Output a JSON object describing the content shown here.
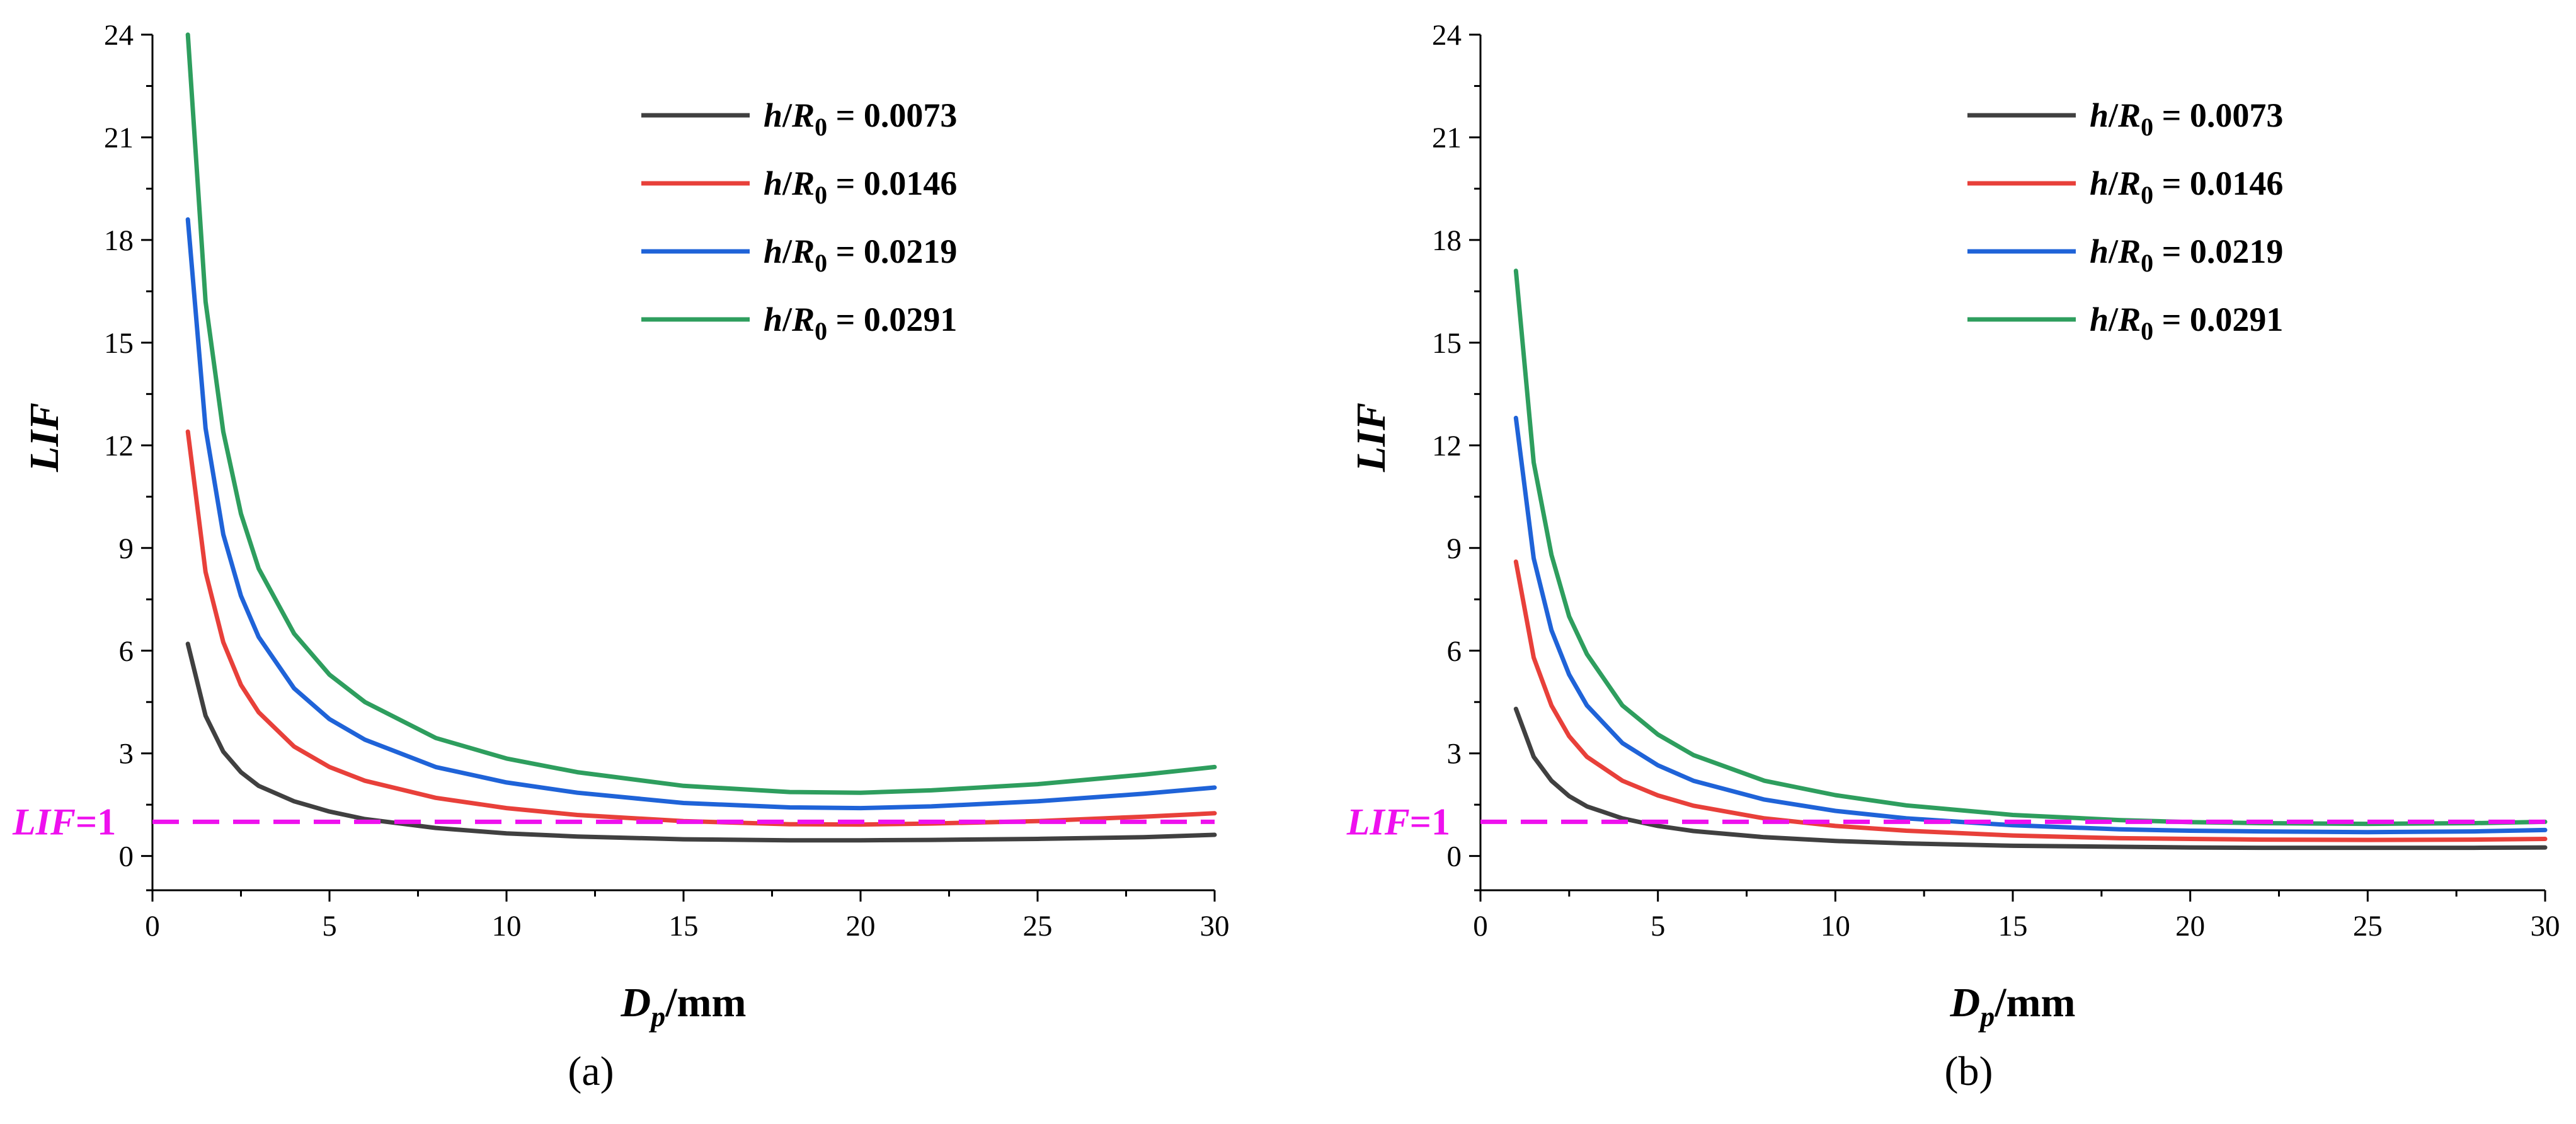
{
  "chart_data": [
    {
      "type": "line",
      "panel_label": "(a)",
      "xlabel": {
        "main": "D",
        "sub": "p",
        "suffix": "/mm"
      },
      "ylabel": "LIF",
      "xlim": [
        0,
        30
      ],
      "ylim": [
        -1,
        24
      ],
      "xticks": [
        0,
        5,
        10,
        15,
        20,
        25,
        30
      ],
      "yticks": [
        0,
        3,
        6,
        9,
        12,
        15,
        18,
        21,
        24
      ],
      "legend_position": "top-right",
      "reference_line": {
        "y": 1,
        "label_main": "LIF",
        "label_suffix": "=1",
        "color": "#ee10ee",
        "style": "dashed"
      },
      "series": [
        {
          "name": "h/R0 = 0.0073",
          "legend": {
            "h": "h",
            "slash": "/",
            "R": "R",
            "sub": "0",
            "value": " = 0.0073"
          },
          "color": "#404040",
          "x": [
            1,
            1.5,
            2,
            2.5,
            3,
            4,
            5,
            6,
            8,
            10,
            12,
            15,
            18,
            20,
            22,
            25,
            28,
            30
          ],
          "y": [
            6.2,
            4.1,
            3.05,
            2.45,
            2.05,
            1.6,
            1.3,
            1.08,
            0.82,
            0.66,
            0.57,
            0.49,
            0.46,
            0.46,
            0.47,
            0.5,
            0.55,
            0.62
          ]
        },
        {
          "name": "h/R0 = 0.0146",
          "legend": {
            "h": "h",
            "slash": "/",
            "R": "R",
            "sub": "0",
            "value": " = 0.0146"
          },
          "color": "#e8403a",
          "x": [
            1,
            1.5,
            2,
            2.5,
            3,
            4,
            5,
            6,
            8,
            10,
            12,
            15,
            18,
            20,
            22,
            25,
            28,
            30
          ],
          "y": [
            12.4,
            8.3,
            6.25,
            5.0,
            4.2,
            3.2,
            2.6,
            2.2,
            1.7,
            1.4,
            1.2,
            1.02,
            0.93,
            0.92,
            0.95,
            1.02,
            1.15,
            1.25
          ]
        },
        {
          "name": "h/R0 = 0.0219",
          "legend": {
            "h": "h",
            "slash": "/",
            "R": "R",
            "sub": "0",
            "value": " = 0.0219"
          },
          "color": "#1f63d8",
          "x": [
            1,
            1.5,
            2,
            2.5,
            3,
            4,
            5,
            6,
            8,
            10,
            12,
            15,
            18,
            20,
            22,
            25,
            28,
            30
          ],
          "y": [
            18.6,
            12.5,
            9.4,
            7.6,
            6.4,
            4.9,
            4.0,
            3.4,
            2.6,
            2.15,
            1.85,
            1.55,
            1.42,
            1.4,
            1.45,
            1.6,
            1.82,
            2.0
          ]
        },
        {
          "name": "h/R0 = 0.0291",
          "legend": {
            "h": "h",
            "slash": "/",
            "R": "R",
            "sub": "0",
            "value": " = 0.0291"
          },
          "color": "#2e9e5e",
          "x": [
            1,
            1.5,
            2,
            2.5,
            3,
            4,
            5,
            6,
            8,
            10,
            12,
            15,
            18,
            20,
            22,
            25,
            28,
            30
          ],
          "y": [
            24.0,
            16.2,
            12.4,
            10.0,
            8.4,
            6.5,
            5.3,
            4.5,
            3.45,
            2.85,
            2.45,
            2.05,
            1.87,
            1.85,
            1.92,
            2.1,
            2.38,
            2.6
          ]
        }
      ]
    },
    {
      "type": "line",
      "panel_label": "(b)",
      "xlabel": {
        "main": "D",
        "sub": "p",
        "suffix": "/mm"
      },
      "ylabel": "LIF",
      "xlim": [
        0,
        30
      ],
      "ylim": [
        -1,
        24
      ],
      "xticks": [
        0,
        5,
        10,
        15,
        20,
        25,
        30
      ],
      "yticks": [
        0,
        3,
        6,
        9,
        12,
        15,
        18,
        21,
        24
      ],
      "legend_position": "top-right",
      "reference_line": {
        "y": 1,
        "label_main": "LIF",
        "label_suffix": "=1",
        "color": "#ee10ee",
        "style": "dashed"
      },
      "series": [
        {
          "name": "h/R0 = 0.0073",
          "legend": {
            "h": "h",
            "slash": "/",
            "R": "R",
            "sub": "0",
            "value": " = 0.0073"
          },
          "color": "#404040",
          "x": [
            1,
            1.5,
            2,
            2.5,
            3,
            4,
            5,
            6,
            8,
            10,
            12,
            15,
            18,
            20,
            22,
            25,
            28,
            30
          ],
          "y": [
            4.3,
            2.9,
            2.2,
            1.75,
            1.45,
            1.1,
            0.88,
            0.73,
            0.55,
            0.44,
            0.37,
            0.3,
            0.27,
            0.25,
            0.24,
            0.24,
            0.24,
            0.25
          ]
        },
        {
          "name": "h/R0 = 0.0146",
          "legend": {
            "h": "h",
            "slash": "/",
            "R": "R",
            "sub": "0",
            "value": " = 0.0146"
          },
          "color": "#e8403a",
          "x": [
            1,
            1.5,
            2,
            2.5,
            3,
            4,
            5,
            6,
            8,
            10,
            12,
            15,
            18,
            20,
            22,
            25,
            28,
            30
          ],
          "y": [
            8.6,
            5.8,
            4.4,
            3.5,
            2.9,
            2.2,
            1.77,
            1.47,
            1.1,
            0.88,
            0.74,
            0.6,
            0.52,
            0.5,
            0.48,
            0.47,
            0.48,
            0.5
          ]
        },
        {
          "name": "h/R0 = 0.0219",
          "legend": {
            "h": "h",
            "slash": "/",
            "R": "R",
            "sub": "0",
            "value": " = 0.0219"
          },
          "color": "#1f63d8",
          "x": [
            1,
            1.5,
            2,
            2.5,
            3,
            4,
            5,
            6,
            8,
            10,
            12,
            15,
            18,
            20,
            22,
            25,
            28,
            30
          ],
          "y": [
            12.8,
            8.7,
            6.6,
            5.3,
            4.4,
            3.3,
            2.65,
            2.2,
            1.65,
            1.32,
            1.1,
            0.9,
            0.78,
            0.74,
            0.72,
            0.7,
            0.72,
            0.76
          ]
        },
        {
          "name": "h/R0 = 0.0291",
          "legend": {
            "h": "h",
            "slash": "/",
            "R": "R",
            "sub": "0",
            "value": " = 0.0291"
          },
          "color": "#2e9e5e",
          "x": [
            1,
            1.5,
            2,
            2.5,
            3,
            4,
            5,
            6,
            8,
            10,
            12,
            15,
            18,
            20,
            22,
            25,
            28,
            30
          ],
          "y": [
            17.1,
            11.5,
            8.8,
            7.0,
            5.9,
            4.4,
            3.55,
            2.95,
            2.2,
            1.78,
            1.48,
            1.2,
            1.05,
            0.99,
            0.96,
            0.94,
            0.96,
            1.0
          ]
        }
      ]
    }
  ]
}
